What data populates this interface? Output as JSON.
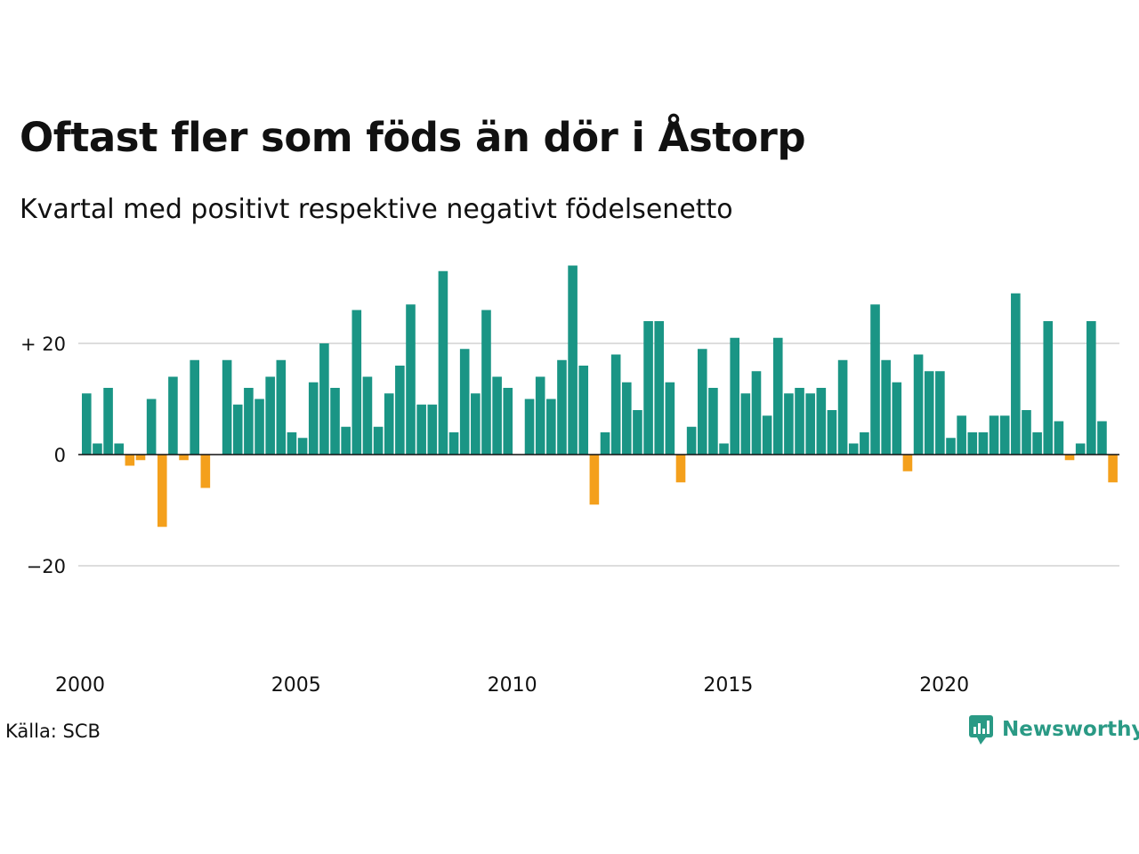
{
  "title": "Oftast fler som föds än dör i Åstorp",
  "subtitle": "Kvartal med positivt respektive negativt födelsenetto",
  "source": "Källa: SCB",
  "brand": "Newsworthy",
  "colors": {
    "positive": "#1a9585",
    "negative": "#f4a01c",
    "grid": "#dddddd",
    "brand": "#2a9a85"
  },
  "chart_data": {
    "type": "bar",
    "start_year": 2000,
    "quarters_per_year": 4,
    "ylim": [
      -35,
      36
    ],
    "yticks": [
      {
        "value": 20,
        "label": "+ 20"
      },
      {
        "value": 0,
        "label": "0"
      },
      {
        "value": -20,
        "label": "−20"
      }
    ],
    "xticks": [
      {
        "year": 2000,
        "label": "2000"
      },
      {
        "year": 2005,
        "label": "2005"
      },
      {
        "year": 2010,
        "label": "2010"
      },
      {
        "year": 2015,
        "label": "2015"
      },
      {
        "year": 2020,
        "label": "2020"
      }
    ],
    "values": [
      11,
      2,
      12,
      2,
      -2,
      -1,
      10,
      -13,
      14,
      -1,
      17,
      -6,
      0,
      17,
      9,
      12,
      10,
      14,
      17,
      4,
      3,
      13,
      20,
      12,
      5,
      26,
      14,
      5,
      11,
      16,
      27,
      9,
      9,
      33,
      4,
      19,
      11,
      26,
      14,
      12,
      0,
      10,
      14,
      10,
      17,
      34,
      16,
      -9,
      4,
      18,
      13,
      8,
      24,
      24,
      13,
      -5,
      5,
      19,
      12,
      2,
      21,
      11,
      15,
      7,
      21,
      11,
      12,
      11,
      12,
      8,
      17,
      2,
      4,
      27,
      17,
      13,
      -3,
      18,
      15,
      15,
      3,
      7,
      4,
      4,
      7,
      7,
      29,
      8,
      4,
      24,
      6,
      -1,
      2,
      24,
      6,
      -5
    ]
  }
}
